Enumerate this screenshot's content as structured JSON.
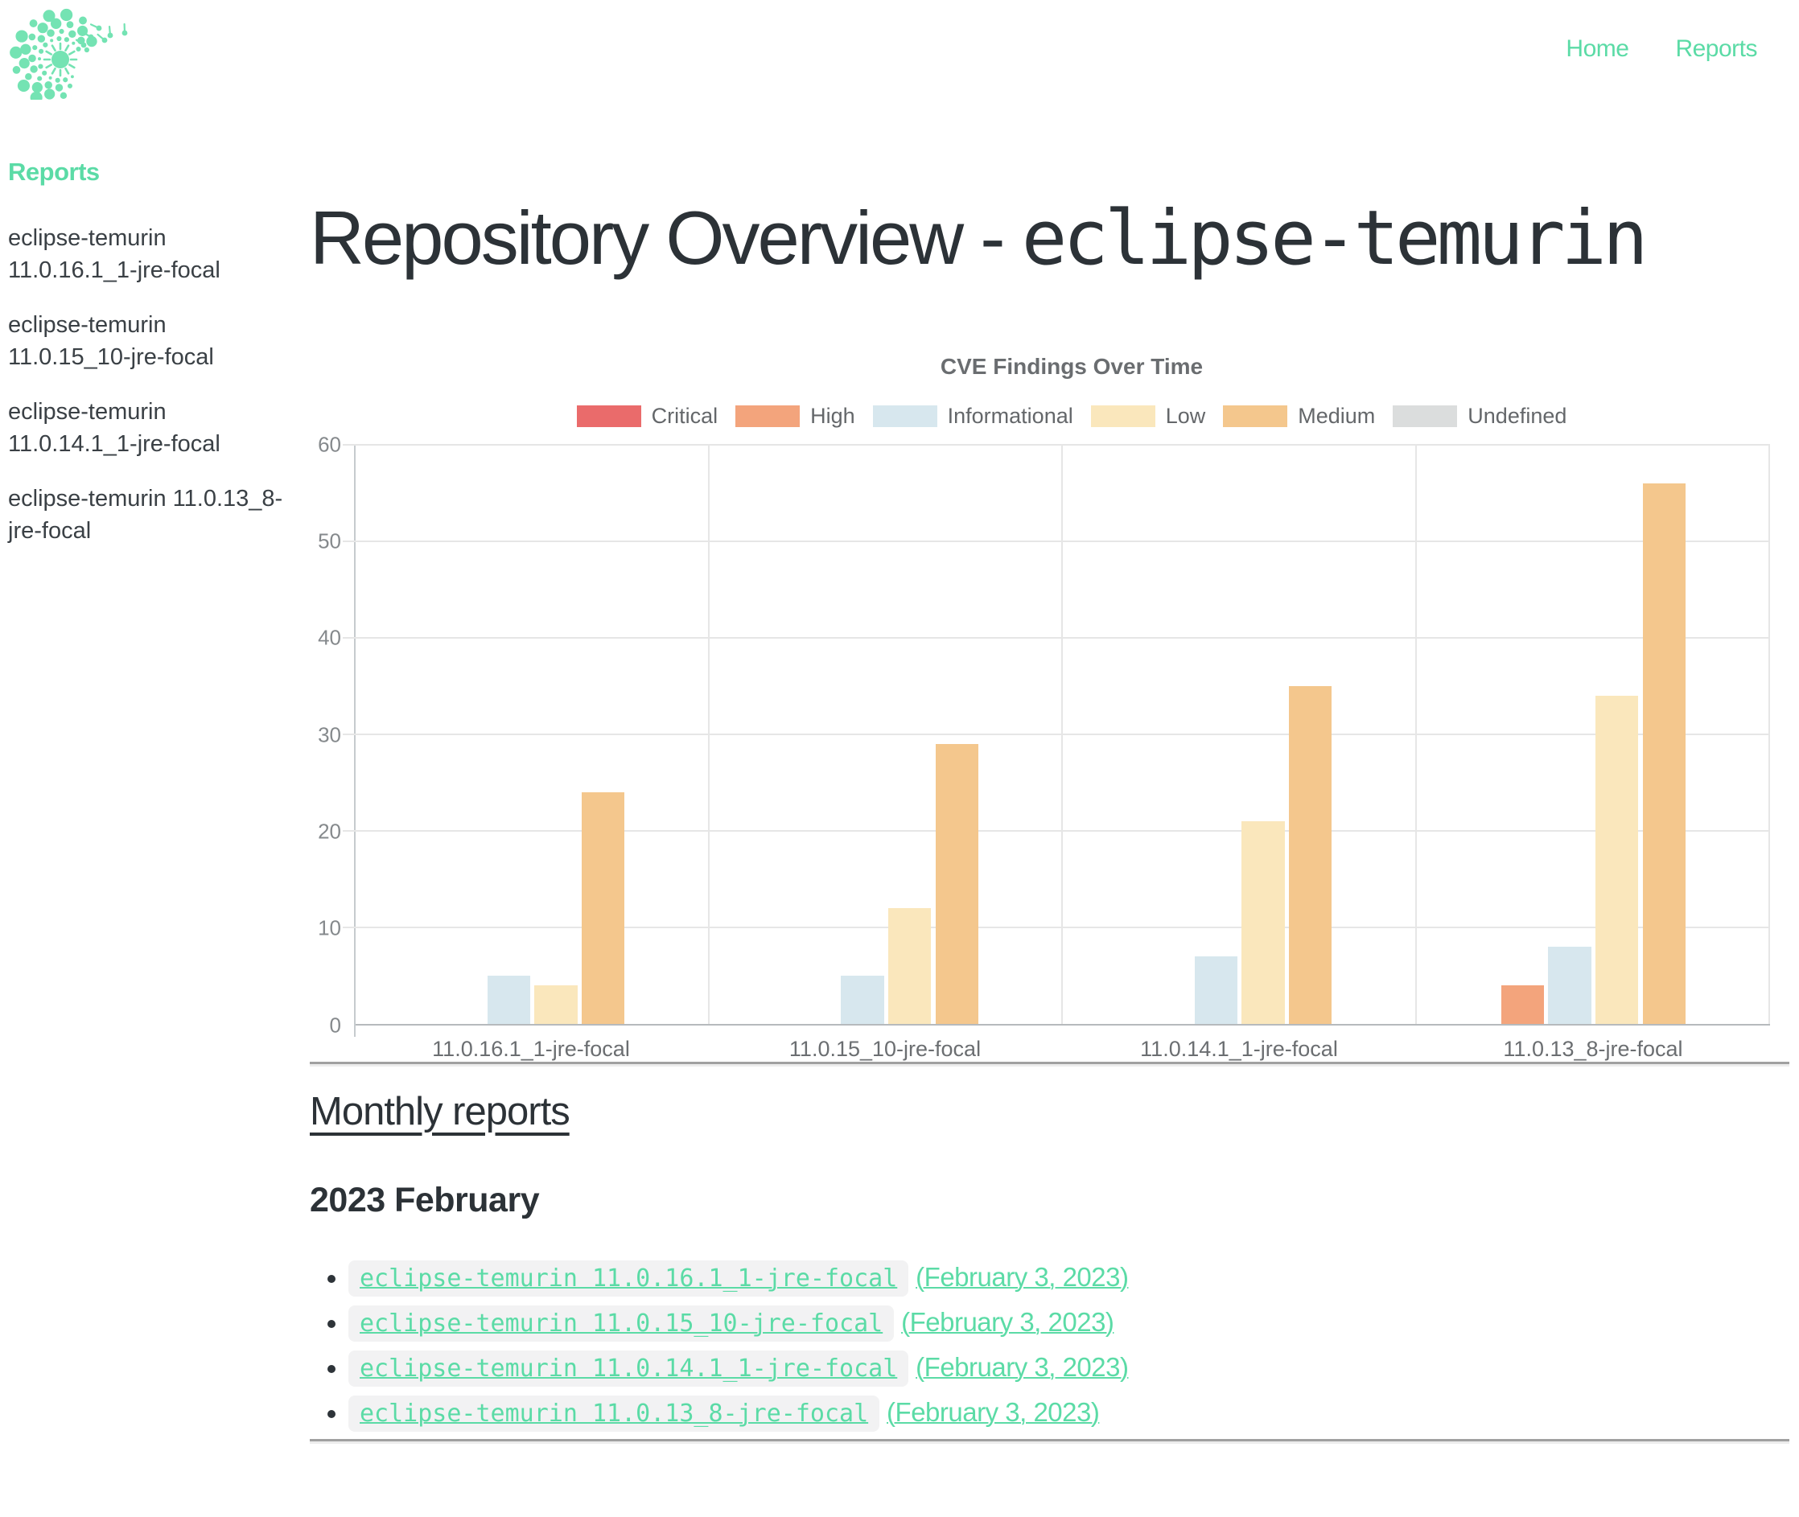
{
  "accent_color": "#5BDBA6",
  "logo_color": "#74E3B3",
  "nav": {
    "items": [
      {
        "label": "Home"
      },
      {
        "label": "Reports"
      }
    ]
  },
  "sidebar": {
    "heading": "Reports",
    "items": [
      {
        "label": "eclipse-temurin 11.0.16.1_1-jre-focal"
      },
      {
        "label": "eclipse-temurin 11.0.15_10-jre-focal"
      },
      {
        "label": "eclipse-temurin 11.0.14.1_1-jre-focal"
      },
      {
        "label": "eclipse-temurin 11.0.13_8-jre-focal"
      }
    ]
  },
  "main": {
    "title_prefix": "Repository Overview - ",
    "title_repo": "eclipse-temurin"
  },
  "chart_data": {
    "type": "bar",
    "title": "CVE Findings Over Time",
    "categories": [
      "11.0.16.1_1-jre-focal",
      "11.0.15_10-jre-focal",
      "11.0.14.1_1-jre-focal",
      "11.0.13_8-jre-focal"
    ],
    "series": [
      {
        "name": "Critical",
        "color": "#EA6B6B",
        "values": [
          0,
          0,
          0,
          0
        ]
      },
      {
        "name": "High",
        "color": "#F3A47C",
        "values": [
          0,
          0,
          0,
          4
        ]
      },
      {
        "name": "Informational",
        "color": "#D7E7EE",
        "values": [
          5,
          5,
          7,
          8
        ]
      },
      {
        "name": "Low",
        "color": "#FAE7BC",
        "values": [
          4,
          12,
          21,
          34
        ]
      },
      {
        "name": "Medium",
        "color": "#F4C78D",
        "values": [
          24,
          29,
          35,
          56
        ]
      },
      {
        "name": "Undefined",
        "color": "#DBDDDD",
        "values": [
          0,
          0,
          0,
          0
        ]
      }
    ],
    "ylim": [
      0,
      60
    ],
    "yticks": [
      0,
      10,
      20,
      30,
      40,
      50,
      60
    ],
    "grid": true,
    "legend_position": "top"
  },
  "monthly": {
    "heading": "Monthly reports",
    "month_heading": "2023 February",
    "items": [
      {
        "code": "eclipse-temurin 11.0.16.1_1-jre-focal",
        "date": "(February 3, 2023)"
      },
      {
        "code": "eclipse-temurin 11.0.15_10-jre-focal",
        "date": "(February 3, 2023)"
      },
      {
        "code": "eclipse-temurin 11.0.14.1_1-jre-focal",
        "date": "(February 3, 2023)"
      },
      {
        "code": "eclipse-temurin 11.0.13_8-jre-focal",
        "date": "(February 3, 2023)"
      }
    ]
  }
}
